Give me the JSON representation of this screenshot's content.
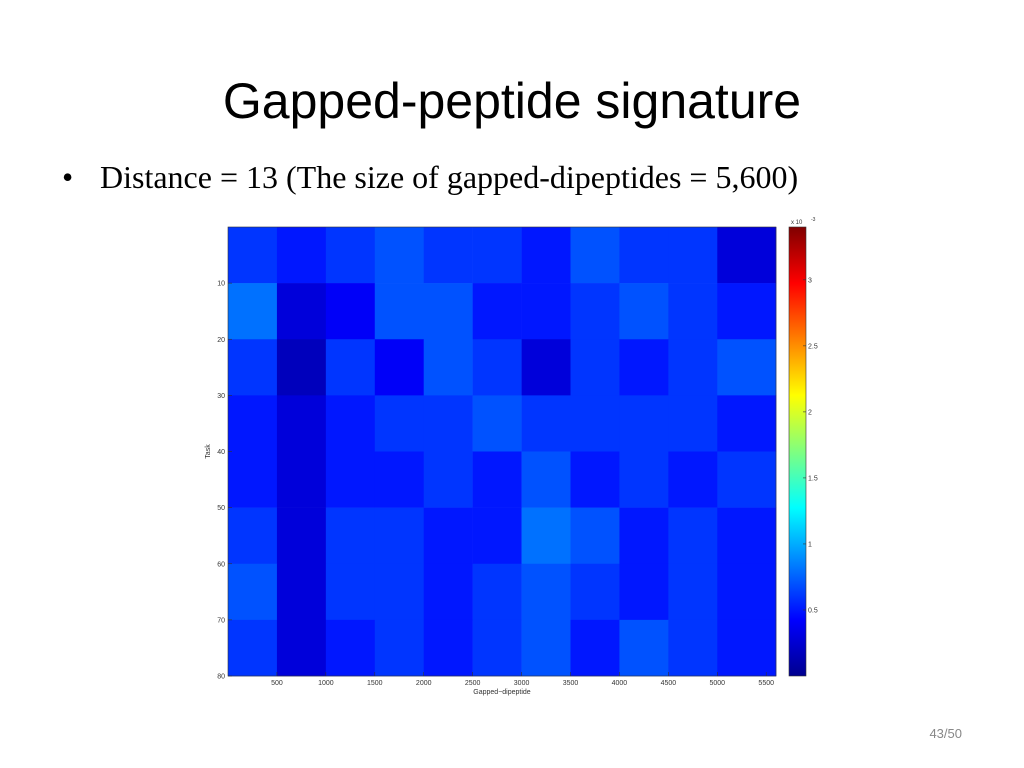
{
  "slide": {
    "title": "Gapped-peptide signature",
    "bullet": "Distance = 13 (The size of gapped-dipeptides = 5,600)",
    "page_number": "43/50"
  },
  "chart_data": {
    "type": "heatmap",
    "xlabel": "Gapped−dipeptide",
    "ylabel": "Task",
    "xlim": [
      0,
      5600
    ],
    "ylim": [
      0,
      80
    ],
    "xticks": [
      500,
      1000,
      1500,
      2000,
      2500,
      3000,
      3500,
      4000,
      4500,
      5000,
      5500
    ],
    "yticks": [
      10,
      20,
      30,
      40,
      50,
      60,
      70,
      80
    ],
    "x_edges": [
      0,
      500,
      1000,
      1500,
      2000,
      2500,
      3000,
      3500,
      4000,
      4500,
      5000,
      5600
    ],
    "y_edges": [
      0,
      10,
      20,
      30,
      40,
      50,
      60,
      70,
      80
    ],
    "values": [
      [
        0.6,
        0.5,
        0.6,
        0.7,
        0.6,
        0.6,
        0.5,
        0.7,
        0.6,
        0.6,
        0.3
      ],
      [
        0.8,
        0.3,
        0.4,
        0.7,
        0.7,
        0.5,
        0.5,
        0.6,
        0.7,
        0.6,
        0.5
      ],
      [
        0.6,
        0.2,
        0.6,
        0.4,
        0.7,
        0.6,
        0.3,
        0.6,
        0.5,
        0.6,
        0.7
      ],
      [
        0.5,
        0.3,
        0.5,
        0.6,
        0.6,
        0.7,
        0.6,
        0.6,
        0.6,
        0.6,
        0.5
      ],
      [
        0.5,
        0.3,
        0.5,
        0.5,
        0.6,
        0.5,
        0.7,
        0.5,
        0.6,
        0.5,
        0.6
      ],
      [
        0.6,
        0.3,
        0.6,
        0.6,
        0.5,
        0.5,
        0.8,
        0.7,
        0.5,
        0.6,
        0.5
      ],
      [
        0.7,
        0.3,
        0.6,
        0.6,
        0.5,
        0.6,
        0.7,
        0.6,
        0.5,
        0.6,
        0.5
      ],
      [
        0.6,
        0.3,
        0.5,
        0.6,
        0.5,
        0.6,
        0.7,
        0.5,
        0.7,
        0.6,
        0.5
      ]
    ],
    "colormap": "jet",
    "clim": [
      0,
      3.4
    ],
    "cticks": [
      0.5,
      1,
      1.5,
      2,
      2.5,
      3
    ],
    "colorbar_multiplier": "x 10",
    "colorbar_exponent": "-3"
  }
}
